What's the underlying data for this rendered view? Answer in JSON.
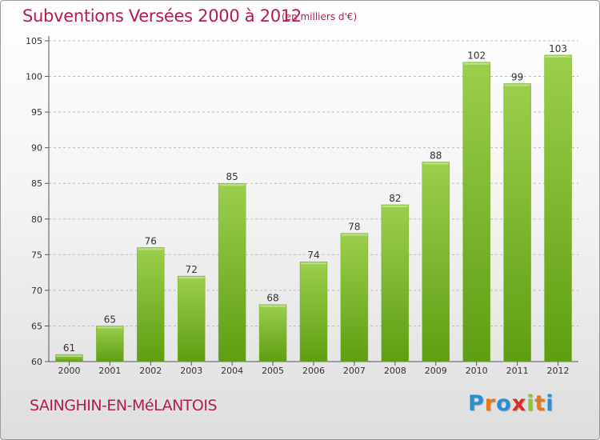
{
  "title": "Subventions Versées 2000 à 2012",
  "subtitle": "(en milliers d'€)",
  "commune": "SAINGHIN-EN-MéLANTOIS",
  "brand": {
    "text": "Proxiti",
    "letter_colors": [
      "#2a8fd1",
      "#e8761e",
      "#2a8fd1",
      "#e02a2a",
      "#8dc43c",
      "#e8761e",
      "#2a8fd1"
    ]
  },
  "colors": {
    "title": "#b01e4e",
    "bar_top": "#9ccf4c",
    "bar_bottom": "#5e9e12",
    "grid": "#bcbcbc"
  },
  "chart_data": {
    "type": "bar",
    "title": "Subventions Versées 2000 à 2012",
    "subtitle": "(en milliers d'€)",
    "xlabel": "",
    "ylabel": "",
    "categories": [
      "2000",
      "2001",
      "2002",
      "2003",
      "2004",
      "2005",
      "2006",
      "2007",
      "2008",
      "2009",
      "2010",
      "2011",
      "2012"
    ],
    "values": [
      61,
      65,
      76,
      72,
      85,
      68,
      74,
      78,
      82,
      88,
      102,
      99,
      103
    ],
    "ylim": [
      60,
      105
    ],
    "yticks": [
      60,
      65,
      70,
      75,
      80,
      85,
      90,
      95,
      100,
      105
    ],
    "grid": "horizontal dashed",
    "legend": "none",
    "data_labels": true
  }
}
